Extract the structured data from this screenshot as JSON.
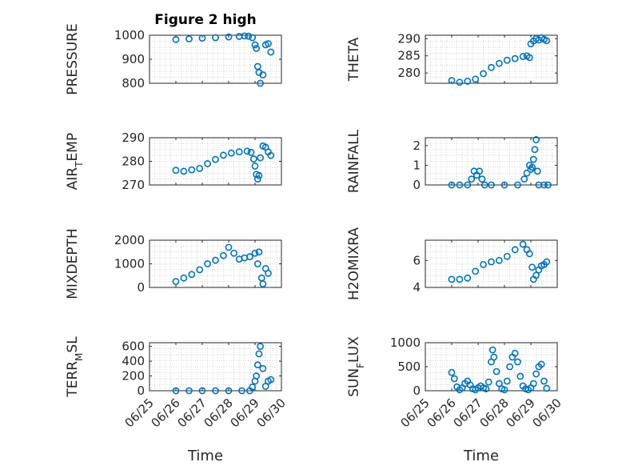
{
  "figure": {
    "title": "Figure 2 high",
    "x_axis_label": "Time",
    "marker_color": "#0072BD",
    "marker": "open-circle",
    "grid": "minor dotted"
  },
  "chart_data": [
    {
      "type": "scatter",
      "ylabel": "PRESSURE",
      "xlim": [
        "06/25",
        "06/30"
      ],
      "ylim": [
        800,
        1000
      ],
      "yticks": [
        800,
        900,
        1000
      ],
      "xticks": [
        "06/25",
        "06/26",
        "06/27",
        "06/28",
        "06/29",
        "06/30"
      ],
      "x": [
        26.0,
        26.5,
        27.0,
        27.5,
        28.0,
        28.4,
        28.6,
        28.75,
        28.9,
        29.0,
        29.05,
        29.1,
        29.15,
        29.2,
        29.3,
        29.4,
        29.5,
        29.6
      ],
      "y": [
        982,
        985,
        988,
        990,
        993,
        995,
        997,
        996,
        990,
        960,
        945,
        870,
        845,
        800,
        835,
        960,
        965,
        930
      ]
    },
    {
      "type": "scatter",
      "ylabel": "THETA",
      "xlim": [
        "06/25",
        "06/30"
      ],
      "ylim": [
        277,
        291
      ],
      "yticks": [
        280,
        285,
        290
      ],
      "xticks": [
        "06/25",
        "06/26",
        "06/27",
        "06/28",
        "06/29",
        "06/30"
      ],
      "x": [
        26.0,
        26.3,
        26.6,
        26.9,
        27.2,
        27.5,
        27.8,
        28.1,
        28.4,
        28.7,
        28.85,
        28.95,
        29.0,
        29.1,
        29.2,
        29.3,
        29.4,
        29.5,
        29.6
      ],
      "y": [
        277.8,
        277.3,
        277.6,
        278.2,
        279.8,
        281.6,
        282.8,
        283.7,
        284.2,
        284.8,
        285.0,
        284.5,
        288.5,
        289.3,
        290.0,
        289.6,
        290.3,
        289.8,
        289.4
      ]
    },
    {
      "type": "scatter",
      "ylabel": "AIR_TEMP",
      "xlim": [
        "06/25",
        "06/30"
      ],
      "ylim": [
        270,
        290
      ],
      "yticks": [
        270,
        280,
        290
      ],
      "xticks": [
        "06/25",
        "06/26",
        "06/27",
        "06/28",
        "06/29",
        "06/30"
      ],
      "x": [
        26.0,
        26.3,
        26.6,
        26.9,
        27.2,
        27.5,
        27.8,
        28.1,
        28.4,
        28.7,
        28.85,
        28.95,
        29.0,
        29.05,
        29.1,
        29.15,
        29.2,
        29.3,
        29.4,
        29.5,
        29.6
      ],
      "y": [
        276.2,
        275.8,
        276.4,
        277.0,
        279.0,
        280.8,
        282.6,
        283.5,
        284.0,
        284.3,
        283.8,
        281.0,
        278.0,
        274.5,
        272.5,
        274.0,
        281.5,
        286.5,
        286.0,
        284.0,
        282.5
      ]
    },
    {
      "type": "scatter",
      "ylabel": "RAINFALL",
      "xlim": [
        "06/25",
        "06/30"
      ],
      "ylim": [
        0,
        2.4
      ],
      "yticks": [
        0,
        1,
        2
      ],
      "xticks": [
        "06/25",
        "06/26",
        "06/27",
        "06/28",
        "06/29",
        "06/30"
      ],
      "x": [
        26.0,
        26.3,
        26.6,
        26.75,
        26.85,
        26.95,
        27.05,
        27.15,
        27.25,
        27.5,
        28.0,
        28.5,
        28.75,
        28.85,
        28.95,
        29.0,
        29.05,
        29.1,
        29.15,
        29.2,
        29.25,
        29.3,
        29.5,
        29.65
      ],
      "y": [
        0,
        0,
        0,
        0.3,
        0.7,
        0.5,
        0.7,
        0.3,
        0,
        0,
        0,
        0,
        0.3,
        0.6,
        1.0,
        0.8,
        0.9,
        1.3,
        1.8,
        2.3,
        0.7,
        0,
        0,
        0
      ]
    },
    {
      "type": "scatter",
      "ylabel": "MIXDEPTH",
      "xlim": [
        "06/25",
        "06/30"
      ],
      "ylim": [
        0,
        2000
      ],
      "yticks": [
        0,
        1000,
        2000
      ],
      "xticks": [
        "06/25",
        "06/26",
        "06/27",
        "06/28",
        "06/29",
        "06/30"
      ],
      "x": [
        26.0,
        26.3,
        26.6,
        26.9,
        27.2,
        27.5,
        27.8,
        28.0,
        28.2,
        28.4,
        28.6,
        28.8,
        29.0,
        29.1,
        29.15,
        29.25,
        29.3,
        29.4,
        29.5
      ],
      "y": [
        250,
        400,
        550,
        750,
        1000,
        1150,
        1350,
        1700,
        1450,
        1200,
        1250,
        1300,
        1450,
        1000,
        1500,
        400,
        150,
        800,
        600
      ]
    },
    {
      "type": "scatter",
      "ylabel": "H2OMIXRA",
      "xlim": [
        "06/25",
        "06/30"
      ],
      "ylim": [
        4,
        7.5
      ],
      "yticks": [
        4,
        6
      ],
      "xticks": [
        "06/25",
        "06/26",
        "06/27",
        "06/28",
        "06/29",
        "06/30"
      ],
      "x": [
        26.0,
        26.3,
        26.6,
        26.9,
        27.2,
        27.5,
        27.8,
        28.1,
        28.4,
        28.7,
        28.85,
        28.95,
        29.05,
        29.1,
        29.2,
        29.3,
        29.4,
        29.5,
        29.6
      ],
      "y": [
        4.6,
        4.6,
        4.7,
        5.2,
        5.7,
        5.9,
        6.0,
        6.3,
        6.8,
        7.2,
        6.8,
        6.5,
        5.5,
        4.6,
        4.9,
        5.3,
        5.6,
        5.7,
        5.9
      ]
    },
    {
      "type": "scatter",
      "ylabel": "TERR_MSL",
      "xlim": [
        "06/25",
        "06/30"
      ],
      "ylim": [
        0,
        650
      ],
      "yticks": [
        0,
        200,
        400,
        600
      ],
      "xticks": [
        "06/25",
        "06/26",
        "06/27",
        "06/28",
        "06/29",
        "06/30"
      ],
      "x": [
        26.0,
        26.5,
        27.0,
        27.5,
        28.0,
        28.5,
        28.8,
        28.9,
        29.0,
        29.05,
        29.1,
        29.15,
        29.2,
        29.3,
        29.4,
        29.5,
        29.6
      ],
      "y": [
        0,
        0,
        0,
        0,
        0,
        0,
        0,
        50,
        130,
        200,
        350,
        500,
        600,
        300,
        60,
        130,
        150
      ]
    },
    {
      "type": "scatter",
      "ylabel": "SUN_FLUX",
      "xlim": [
        "06/25",
        "06/30"
      ],
      "ylim": [
        0,
        1000
      ],
      "yticks": [
        0,
        500,
        1000
      ],
      "xticks": [
        "06/25",
        "06/26",
        "06/27",
        "06/28",
        "06/29",
        "06/30"
      ],
      "x": [
        26.0,
        26.1,
        26.2,
        26.3,
        26.4,
        26.5,
        26.6,
        26.7,
        26.8,
        26.9,
        27.0,
        27.1,
        27.2,
        27.3,
        27.4,
        27.5,
        27.55,
        27.6,
        27.7,
        27.8,
        27.9,
        28.0,
        28.1,
        28.2,
        28.3,
        28.4,
        28.5,
        28.6,
        28.7,
        28.8,
        28.9,
        29.0,
        29.1,
        29.2,
        29.3,
        29.4,
        29.5,
        29.6
      ],
      "y": [
        380,
        250,
        80,
        20,
        60,
        150,
        200,
        120,
        40,
        20,
        60,
        100,
        60,
        40,
        180,
        600,
        850,
        700,
        400,
        150,
        40,
        20,
        200,
        500,
        700,
        780,
        600,
        300,
        100,
        40,
        20,
        60,
        150,
        350,
        500,
        550,
        200,
        50
      ]
    }
  ]
}
